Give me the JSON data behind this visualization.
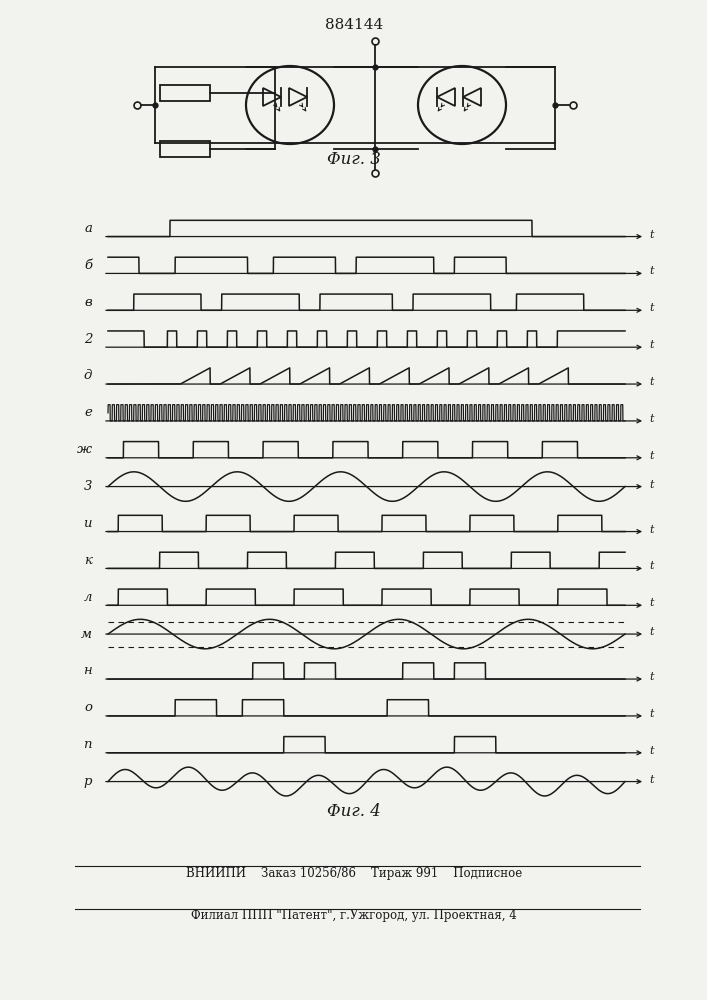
{
  "title": "884144",
  "fig3_label": "Φиг. 3",
  "fig4_label": "Φиг. 4",
  "footer_line1": "ВНИИПИ    Заказ 10256/86    Тираж 991    Подписное",
  "footer_line2": "Филиал ППП \"Патент\", г.Ужгород, ул. Проектная, 4",
  "row_labels": [
    "а",
    "б",
    "в",
    "2",
    "д",
    "е",
    "ж",
    "3",
    "и",
    "к",
    "л",
    "м",
    "н",
    "о",
    "п",
    "р"
  ],
  "bg_color": "#f2f2ee",
  "line_color": "#1a1a1a"
}
